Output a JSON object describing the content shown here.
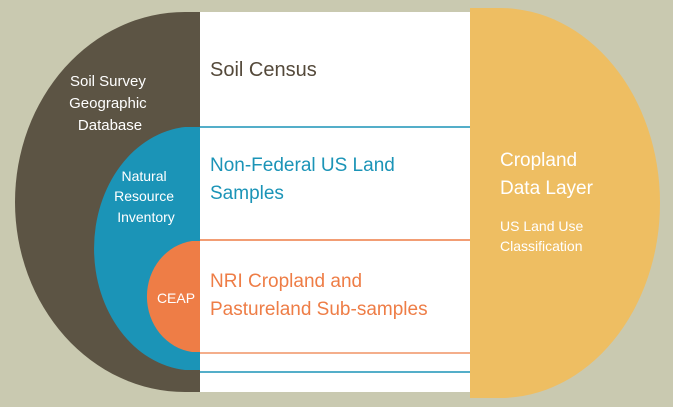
{
  "colors": {
    "background": "#c9c9b0",
    "ssurgo": "#5c5444",
    "nri": "#1b94b7",
    "ceap": "#ee7d46",
    "cdl": "#eebe62",
    "panel": "#ffffff",
    "soil_census_text": "#54493a",
    "nonfederal_text": "#1b94b7",
    "nri_cropland_text": "#ee7d46",
    "circle_text": "#ffffff",
    "divider_blue": "#1b94b7",
    "divider_orange": "#ee7d46"
  },
  "diagram": {
    "ssurgo_label": [
      "Soil Survey",
      "Geographic",
      "Database"
    ],
    "nri_label": [
      "Natural",
      "Resource",
      "Inventory"
    ],
    "ceap_label": "CEAP",
    "cdl_title": [
      "Cropland",
      "Data Layer"
    ],
    "cdl_subtitle": [
      "US Land Use",
      "Classification"
    ],
    "rows": {
      "soil_census": "Soil Census",
      "nonfederal": [
        "Non-Federal US Land",
        "Samples"
      ],
      "nri_cropland": [
        "NRI Cropland and",
        "Pastureland Sub-samples"
      ]
    }
  }
}
